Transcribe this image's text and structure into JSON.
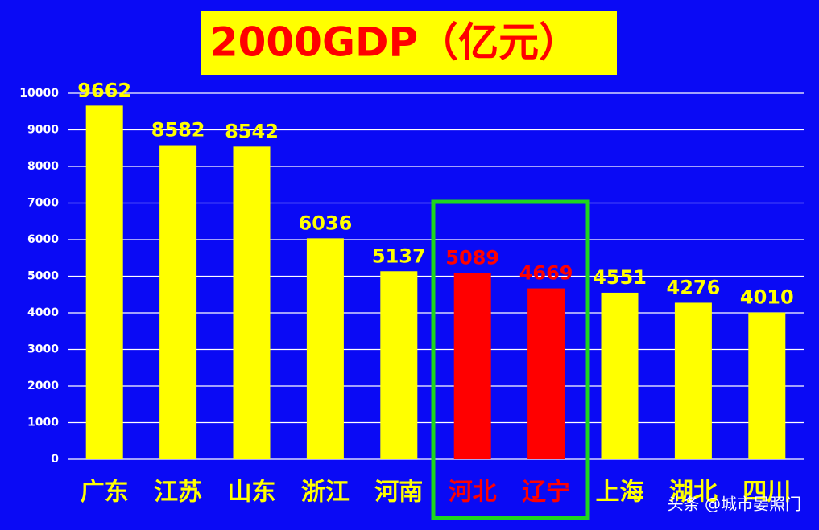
{
  "chart_data": {
    "type": "bar",
    "title": "2000GDP（亿元）",
    "categories": [
      "广东",
      "江苏",
      "山东",
      "浙江",
      "河南",
      "河北",
      "辽宁",
      "上海",
      "湖北",
      "四川"
    ],
    "values": [
      9662,
      8582,
      8542,
      6036,
      5137,
      5089,
      4669,
      4551,
      4276,
      4010
    ],
    "colors": [
      "#ffff00",
      "#ffff00",
      "#ffff00",
      "#ffff00",
      "#ffff00",
      "#ff0000",
      "#ff0000",
      "#ffff00",
      "#ffff00",
      "#ffff00"
    ],
    "ylim": [
      0,
      10000
    ],
    "yticks": [
      0,
      1000,
      2000,
      3000,
      4000,
      5000,
      6000,
      7000,
      8000,
      9000,
      10000
    ],
    "grid": true,
    "watermark": "头条 @城市晏照门"
  }
}
